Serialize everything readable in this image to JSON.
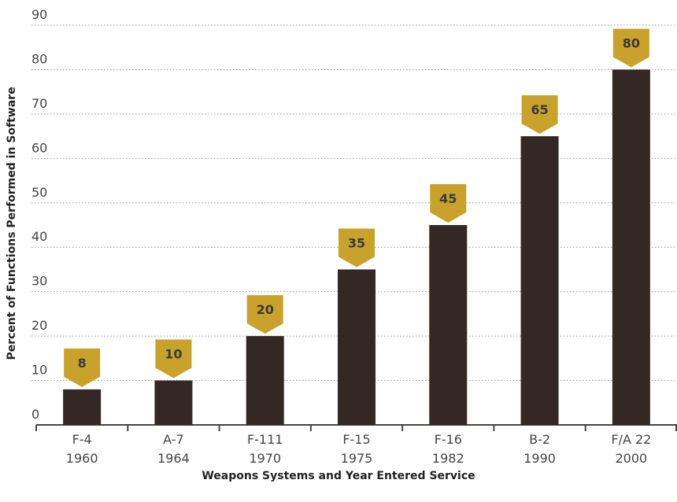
{
  "chart_data": {
    "type": "bar",
    "categories": [
      [
        "F-4",
        "1960"
      ],
      [
        "A-7",
        "1964"
      ],
      [
        "F-111",
        "1970"
      ],
      [
        "F-15",
        "1975"
      ],
      [
        "F-16",
        "1982"
      ],
      [
        "B-2",
        "1990"
      ],
      [
        "F/A 22",
        "2000"
      ]
    ],
    "values": [
      8,
      10,
      20,
      35,
      45,
      65,
      80
    ],
    "color": "#332826",
    "label_color": "#c9a22c",
    "ylim": [
      0,
      90
    ],
    "yticks": [
      0,
      10,
      20,
      30,
      40,
      50,
      60,
      70,
      80,
      90
    ],
    "grid": true,
    "y_label": "Percent of Functions Performed in Software",
    "x_label": "Weapons Systems and Year Entered Service"
  }
}
